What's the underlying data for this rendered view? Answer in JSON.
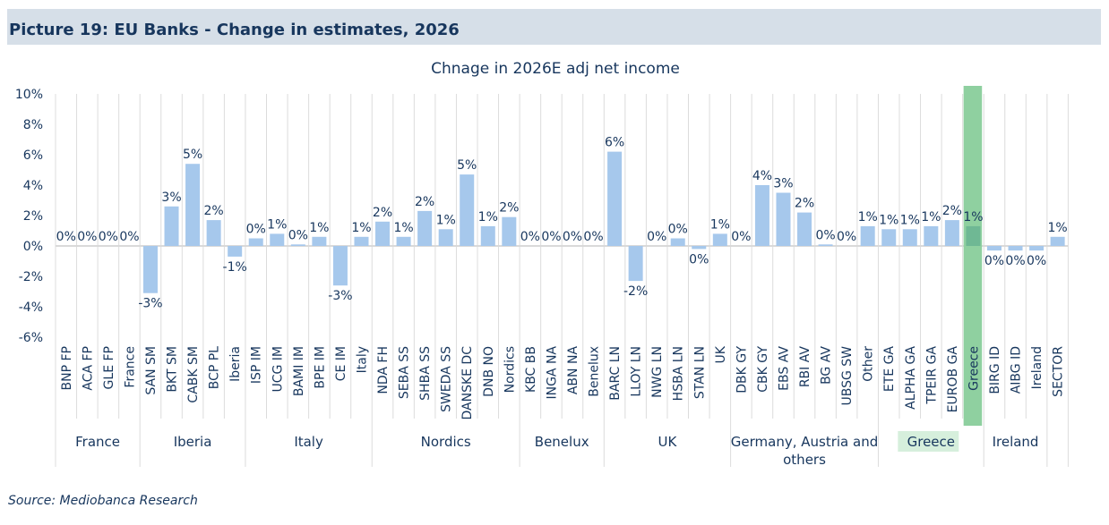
{
  "header": {
    "title": "Picture 19: EU Banks - Change in estimates, 2026"
  },
  "source": "Source: Mediobanca Research",
  "chart_data": {
    "type": "bar",
    "title": "Chnage in 2026E adj net income",
    "xlabel": "",
    "ylabel": "",
    "ylim": [
      -6,
      10
    ],
    "y_ticks": [
      10,
      8,
      6,
      4,
      2,
      0,
      -2,
      -4,
      -6
    ],
    "y_tick_labels": [
      "10%",
      "8%",
      "6%",
      "4%",
      "2%",
      "0%",
      "-2%",
      "-4%",
      "-6%"
    ],
    "grid": "vertical",
    "highlight_category": "Greece",
    "colors": {
      "bar": "#a6c8ec",
      "highlight": "#8fd0a0",
      "text": "#17365d",
      "header_bg": "#d6dfe8"
    },
    "categories": [
      "BNP FP",
      "ACA FP",
      "GLE FP",
      "France",
      "SAN SM",
      "BKT SM",
      "CABK SM",
      "BCP PL",
      "Iberia",
      "ISP IM",
      "UCG IM",
      "BAMI IM",
      "BPE IM",
      "CE IM",
      "Italy",
      "NDA FH",
      "SEBA SS",
      "SHBA SS",
      "SWEDA SS",
      "DANSKE DC",
      "DNB NO",
      "Nordics",
      "KBC BB",
      "INGA NA",
      "ABN NA",
      "Benelux",
      "BARC LN",
      "LLOY LN",
      "NWG LN",
      "HSBA LN",
      "STAN LN",
      "UK",
      "DBK GY",
      "CBK GY",
      "EBS AV",
      "RBI AV",
      "BG AV",
      "UBSG SW",
      "Other",
      "ETE GA",
      "ALPHA GA",
      "TPEIR GA",
      "EUROB GA",
      "Greece",
      "BIRG ID",
      "AIBG ID",
      "Ireland",
      "SECTOR"
    ],
    "values": [
      0,
      0,
      0,
      0,
      -3.1,
      2.6,
      5.4,
      1.7,
      -0.7,
      0.5,
      0.8,
      0.1,
      0.6,
      -2.6,
      0.6,
      1.6,
      0.6,
      2.3,
      1.1,
      4.7,
      1.3,
      1.9,
      0,
      0,
      0,
      0,
      6.2,
      -2.3,
      0,
      0.5,
      -0.2,
      0.8,
      0,
      4.0,
      3.5,
      2.2,
      0.1,
      0,
      1.3,
      1.1,
      1.1,
      1.3,
      1.7,
      1.3,
      -0.3,
      -0.3,
      -0.3,
      0.6
    ],
    "data_labels": [
      "0%",
      "0%",
      "0%",
      "0%",
      "-3%",
      "3%",
      "5%",
      "2%",
      "-1%",
      "0%",
      "1%",
      "0%",
      "1%",
      "-3%",
      "1%",
      "2%",
      "1%",
      "2%",
      "1%",
      "5%",
      "1%",
      "2%",
      "0%",
      "0%",
      "0%",
      "0%",
      "6%",
      "-2%",
      "0%",
      "0%",
      "0%",
      "1%",
      "0%",
      "4%",
      "3%",
      "2%",
      "0%",
      "0%",
      "1%",
      "1%",
      "1%",
      "1%",
      "2%",
      "1%",
      "0%",
      "0%",
      "0%",
      "1%"
    ],
    "groups": [
      {
        "name": "France",
        "count": 4
      },
      {
        "name": "Iberia",
        "count": 5
      },
      {
        "name": "Italy",
        "count": 6
      },
      {
        "name": "Nordics",
        "count": 7
      },
      {
        "name": "Benelux",
        "count": 4
      },
      {
        "name": "UK",
        "count": 6
      },
      {
        "name": "Germany, Austria and others",
        "lines": [
          "Germany, Austria and",
          "others"
        ],
        "count": 7
      },
      {
        "name": "Greece",
        "count": 5,
        "highlight": true
      },
      {
        "name": "Ireland",
        "count": 3
      },
      {
        "name": "",
        "count": 1
      }
    ]
  }
}
